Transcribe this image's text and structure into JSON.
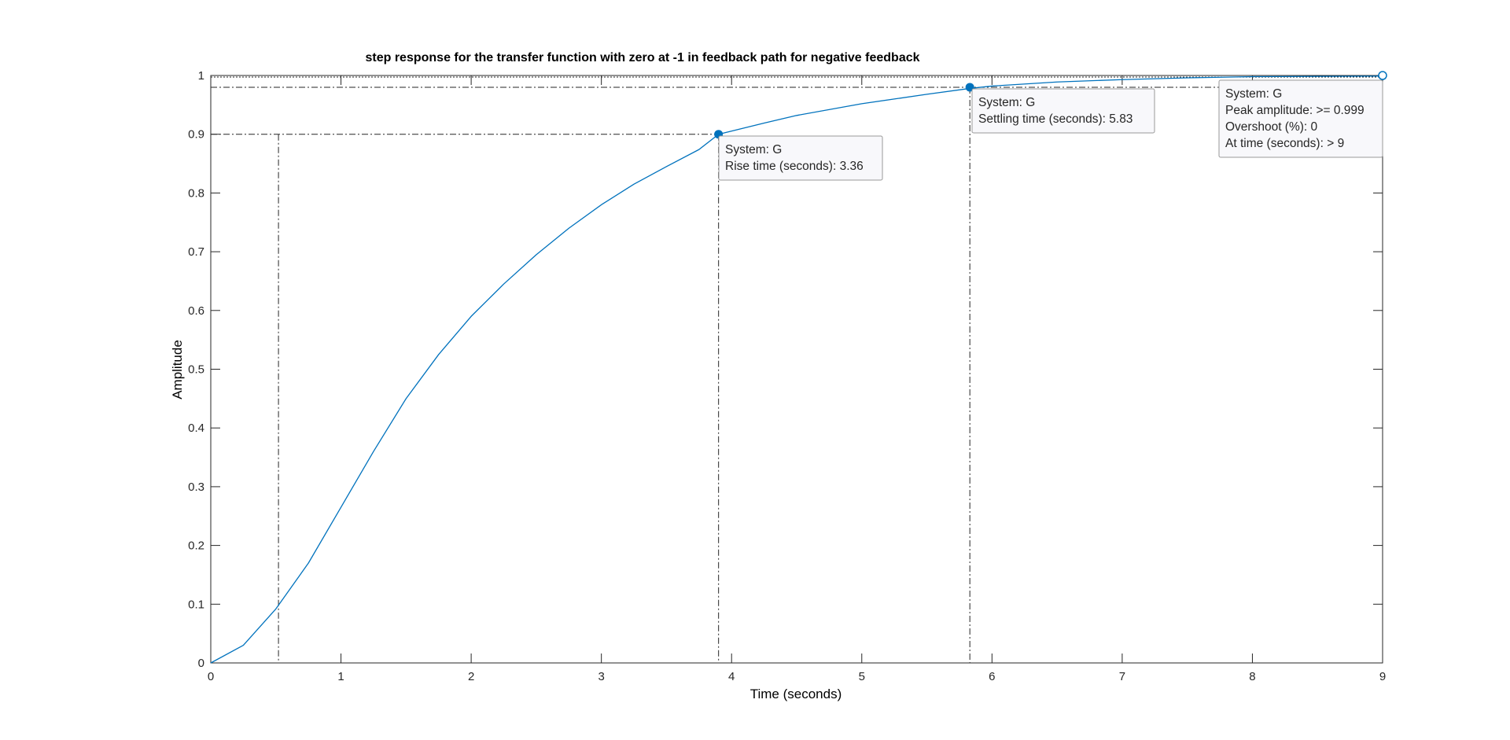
{
  "chart_data": {
    "type": "line",
    "title": "step response for the transfer function with zero at -1 in feedback path for negative feedback",
    "xlabel": "Time (seconds)",
    "ylabel": "Amplitude",
    "xlim": [
      0,
      9
    ],
    "ylim": [
      0,
      1
    ],
    "xticks": [
      "0",
      "1",
      "2",
      "3",
      "4",
      "5",
      "6",
      "7",
      "8",
      "9"
    ],
    "yticks": [
      "0",
      "0.1",
      "0.2",
      "0.3",
      "0.4",
      "0.5",
      "0.6",
      "0.7",
      "0.8",
      "0.9",
      "1"
    ],
    "grid": false,
    "line_color": "#0072BD",
    "marker_color": "#0072BD",
    "characteristic_line_color": "#262626",
    "series": [
      {
        "x": [
          0,
          0.25,
          0.5,
          0.75,
          1,
          1.25,
          1.5,
          1.75,
          2,
          2.25,
          2.5,
          2.75,
          3,
          3.25,
          3.5,
          3.75,
          3.9,
          4.25,
          4.5,
          5,
          5.5,
          5.83,
          6,
          6.5,
          7,
          7.5,
          8,
          8.5,
          9
        ],
        "values": [
          0,
          0.03,
          0.092,
          0.17,
          0.265,
          0.36,
          0.45,
          0.525,
          0.59,
          0.645,
          0.695,
          0.74,
          0.78,
          0.815,
          0.845,
          0.874,
          0.9,
          0.919,
          0.932,
          0.952,
          0.968,
          0.978,
          0.982,
          0.989,
          0.993,
          0.996,
          0.998,
          0.9985,
          0.999
        ]
      }
    ],
    "characteristics": [
      {
        "kind": "rise_time",
        "x_start": 0.52,
        "y_start": 0.1,
        "x": 3.9,
        "y": 0.9,
        "label_line1": "System: G",
        "label_line2": "Rise time (seconds): 3.36"
      },
      {
        "kind": "settling_time",
        "x": 5.83,
        "y": 0.98,
        "label_line1": "System: G",
        "label_line2": "Settling time (seconds): 5.83"
      },
      {
        "kind": "peak",
        "x": 9,
        "y": 1.0,
        "label_line1": "System: G",
        "label_line2": "Peak amplitude: >= 0.999",
        "label_line3": "Overshoot (%): 0",
        "label_line4": "At time (seconds): > 9"
      }
    ]
  }
}
